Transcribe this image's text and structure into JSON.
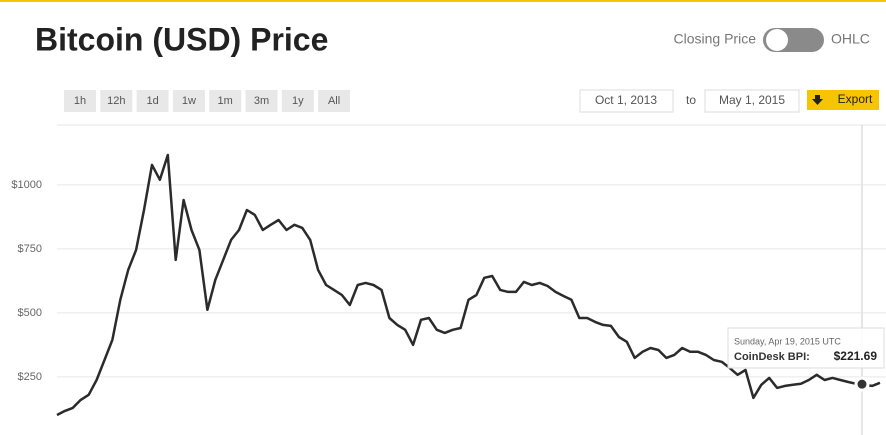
{
  "header": {
    "title": "Bitcoin (USD) Price",
    "toggle_left": "Closing Price",
    "toggle_right": "OHLC"
  },
  "controls": {
    "ranges": [
      "1h",
      "12h",
      "1d",
      "1w",
      "1m",
      "3m",
      "1y",
      "All"
    ],
    "date_from": "Oct 1, 2013",
    "separator": "to",
    "date_to": "May 1, 2015",
    "export": "Export"
  },
  "chart_data": {
    "type": "line",
    "color": "#2b2b2b",
    "grid": true,
    "ylim": [
      23,
      1234
    ],
    "yticks": [
      {
        "value": 250,
        "label": "$250"
      },
      {
        "value": 500,
        "label": "$500"
      },
      {
        "value": 750,
        "label": "$750"
      },
      {
        "value": 1000,
        "label": "$1000"
      }
    ],
    "values": [
      101,
      117,
      129,
      160,
      180,
      238,
      316,
      395,
      551,
      668,
      746,
      902,
      1078,
      1020,
      1117,
      707,
      941,
      824,
      746,
      512,
      629,
      707,
      785,
      824,
      902,
      883,
      824,
      844,
      863,
      824,
      844,
      832,
      785,
      668,
      609,
      590,
      570,
      531,
      609,
      617,
      609,
      590,
      480,
      453,
      434,
      375,
      473,
      480,
      434,
      422,
      434,
      441,
      551,
      570,
      637,
      644,
      590,
      582,
      582,
      621,
      609,
      617,
      605,
      582,
      566,
      551,
      480,
      480,
      465,
      453,
      449,
      406,
      387,
      324,
      348,
      363,
      355,
      324,
      336,
      363,
      348,
      348,
      336,
      316,
      309,
      285,
      258,
      277,
      168,
      219,
      246,
      207,
      215,
      219,
      223,
      238,
      258,
      238,
      246,
      238,
      230,
      223,
      219,
      215,
      227
    ]
  },
  "tooltip": {
    "date": "Sunday, Apr 19, 2015 UTC",
    "label": "CoinDesk BPI:",
    "value": 221.69,
    "value_label": "$221.69"
  }
}
